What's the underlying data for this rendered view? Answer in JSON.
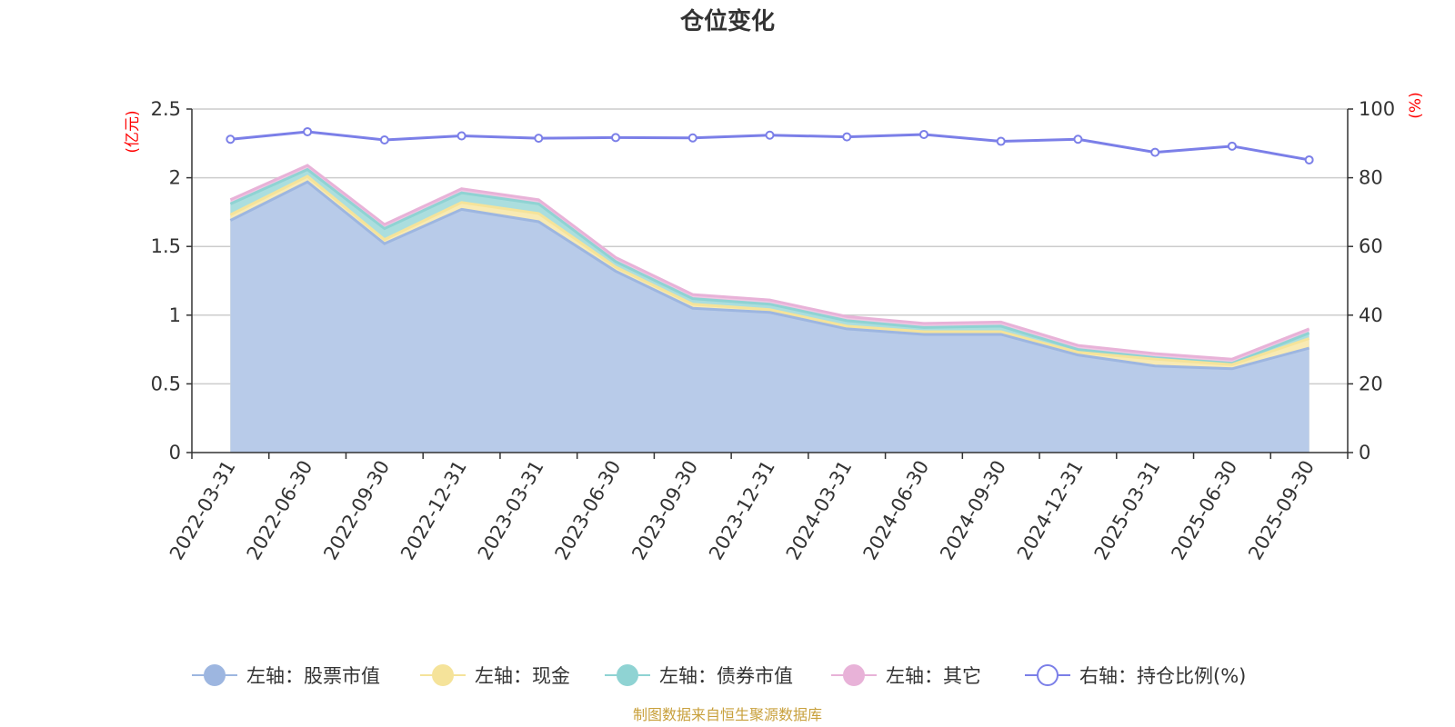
{
  "chart_data": {
    "type": "area",
    "title": "仓位变化",
    "left_axis_unit": "(亿元)",
    "right_axis_unit": "(%)",
    "left_ylim": [
      0,
      2.5
    ],
    "left_ticks": [
      "0",
      "0.5",
      "1",
      "1.5",
      "2",
      "2.5"
    ],
    "right_ylim": [
      0,
      100
    ],
    "right_ticks": [
      "0",
      "20",
      "40",
      "60",
      "80",
      "100"
    ],
    "categories": [
      "2022-03-31",
      "2022-06-30",
      "2022-09-30",
      "2022-12-31",
      "2023-03-31",
      "2023-06-30",
      "2023-09-30",
      "2023-12-31",
      "2024-03-31",
      "2024-06-30",
      "2024-09-30",
      "2024-12-31",
      "2025-03-31",
      "2025-06-30",
      "2025-09-30"
    ],
    "stacked_series": [
      {
        "name": "左轴：股票市值",
        "color": "#9db6e0",
        "fill": "#b8cbe9",
        "values": [
          1.69,
          1.97,
          1.52,
          1.77,
          1.68,
          1.32,
          1.05,
          1.02,
          0.9,
          0.86,
          0.86,
          0.71,
          0.63,
          0.61,
          0.76
        ]
      },
      {
        "name": "左轴：现金",
        "color": "#f5e39a",
        "fill": "#f8eab3",
        "values": [
          0.04,
          0.04,
          0.03,
          0.05,
          0.06,
          0.03,
          0.03,
          0.02,
          0.02,
          0.02,
          0.02,
          0.02,
          0.05,
          0.03,
          0.07
        ]
      },
      {
        "name": "左轴：债券市值",
        "color": "#8fd3d3",
        "fill": "#abdede",
        "values": [
          0.08,
          0.05,
          0.08,
          0.07,
          0.07,
          0.04,
          0.04,
          0.04,
          0.04,
          0.03,
          0.04,
          0.02,
          0.01,
          0.01,
          0.04
        ]
      },
      {
        "name": "左轴：其它",
        "color": "#e8b2d8",
        "fill": "#efc7e3",
        "values": [
          0.03,
          0.03,
          0.03,
          0.03,
          0.03,
          0.03,
          0.03,
          0.03,
          0.03,
          0.03,
          0.03,
          0.03,
          0.03,
          0.03,
          0.03
        ]
      }
    ],
    "line_series": {
      "name": "右轴：持仓比例(%)",
      "color": "#7b7fe8",
      "values": [
        91.2,
        93.4,
        91.0,
        92.2,
        91.5,
        91.7,
        91.6,
        92.4,
        91.9,
        92.6,
        90.6,
        91.2,
        87.4,
        89.2,
        85.2
      ]
    },
    "grid": true,
    "legend_position": "bottom"
  },
  "footer": {
    "source": "制图数据来自恒生聚源数据库"
  }
}
